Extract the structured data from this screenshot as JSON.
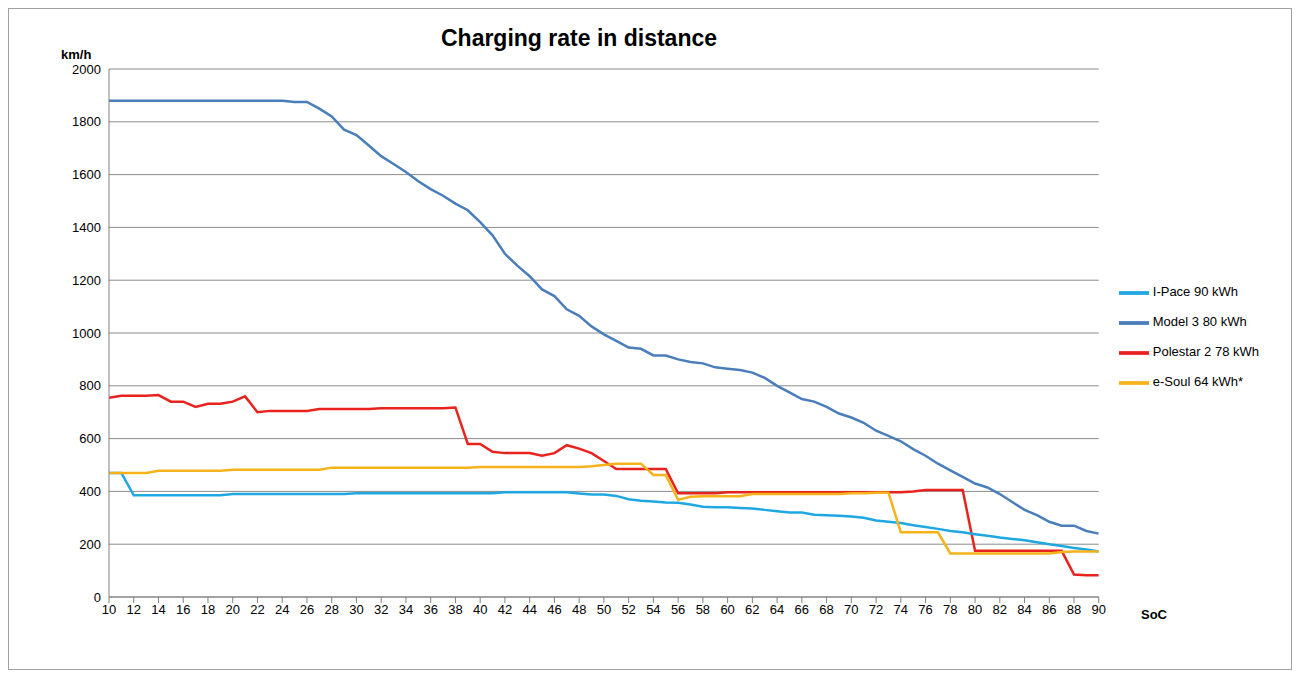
{
  "chart_data": {
    "type": "line",
    "title": "Charging rate in distance",
    "x_label": "SoC",
    "y_label": "km/h",
    "x": [
      10,
      11,
      12,
      13,
      14,
      15,
      16,
      17,
      18,
      19,
      20,
      21,
      22,
      23,
      24,
      25,
      26,
      27,
      28,
      29,
      30,
      31,
      32,
      33,
      34,
      35,
      36,
      37,
      38,
      39,
      40,
      41,
      42,
      43,
      44,
      45,
      46,
      47,
      48,
      49,
      50,
      51,
      52,
      53,
      54,
      55,
      56,
      57,
      58,
      59,
      60,
      61,
      62,
      63,
      64,
      65,
      66,
      67,
      68,
      69,
      70,
      71,
      72,
      73,
      74,
      75,
      76,
      77,
      78,
      79,
      80,
      81,
      82,
      83,
      84,
      85,
      86,
      87,
      88,
      89,
      90
    ],
    "series": [
      {
        "name": "Model 3 80 kWh",
        "color": "#4a7ebb",
        "values": [
          1880,
          1880,
          1880,
          1880,
          1880,
          1880,
          1880,
          1880,
          1880,
          1880,
          1880,
          1880,
          1880,
          1880,
          1880,
          1875,
          1875,
          1850,
          1820,
          1770,
          1750,
          1710,
          1670,
          1640,
          1610,
          1575,
          1545,
          1520,
          1490,
          1465,
          1420,
          1370,
          1300,
          1255,
          1215,
          1165,
          1140,
          1090,
          1065,
          1025,
          995,
          970,
          945,
          940,
          915,
          915,
          900,
          890,
          885,
          870,
          865,
          860,
          850,
          830,
          800,
          775,
          750,
          740,
          720,
          695,
          680,
          660,
          630,
          610,
          590,
          560,
          535,
          505,
          480,
          455,
          430,
          415,
          390,
          360,
          330,
          310,
          285,
          270,
          270,
          250,
          240
        ]
      },
      {
        "name": "Polestar 2 78 kWh",
        "color": "#e8231e",
        "values": [
          755,
          762,
          762,
          762,
          765,
          740,
          740,
          720,
          732,
          732,
          740,
          760,
          700,
          705,
          705,
          705,
          705,
          712,
          712,
          712,
          712,
          712,
          715,
          715,
          715,
          715,
          715,
          715,
          718,
          580,
          580,
          550,
          545,
          545,
          545,
          535,
          545,
          575,
          562,
          545,
          515,
          485,
          485,
          485,
          485,
          485,
          393,
          393,
          393,
          393,
          397,
          397,
          397,
          397,
          397,
          397,
          397,
          397,
          397,
          397,
          397,
          397,
          397,
          397,
          397,
          400,
          405,
          405,
          405,
          405,
          175,
          175,
          175,
          175,
          175,
          175,
          175,
          175,
          85,
          82,
          82
        ]
      },
      {
        "name": "I-Pace 90 kWh",
        "color": "#1fa7e1",
        "values": [
          470,
          470,
          385,
          385,
          385,
          385,
          385,
          385,
          385,
          385,
          390,
          390,
          390,
          390,
          390,
          390,
          390,
          390,
          390,
          390,
          393,
          393,
          393,
          393,
          393,
          393,
          393,
          393,
          393,
          393,
          393,
          393,
          397,
          397,
          397,
          397,
          397,
          397,
          392,
          388,
          388,
          383,
          370,
          365,
          362,
          358,
          357,
          350,
          342,
          340,
          340,
          337,
          335,
          330,
          325,
          320,
          320,
          312,
          310,
          308,
          305,
          300,
          290,
          285,
          280,
          272,
          265,
          258,
          250,
          245,
          238,
          232,
          225,
          220,
          215,
          207,
          200,
          193,
          186,
          180,
          172
        ]
      },
      {
        "name": "e-Soul 64 kWh*",
        "color": "#f5b21b",
        "values": [
          470,
          470,
          470,
          470,
          478,
          478,
          478,
          478,
          478,
          478,
          482,
          482,
          482,
          482,
          482,
          482,
          482,
          482,
          490,
          490,
          490,
          490,
          490,
          490,
          490,
          490,
          490,
          490,
          490,
          490,
          492,
          492,
          492,
          492,
          492,
          492,
          492,
          492,
          492,
          495,
          500,
          505,
          505,
          505,
          462,
          462,
          368,
          380,
          382,
          382,
          382,
          382,
          390,
          390,
          390,
          390,
          390,
          390,
          390,
          390,
          393,
          393,
          395,
          395,
          245,
          245,
          245,
          245,
          165,
          165,
          165,
          165,
          165,
          165,
          165,
          165,
          165,
          170,
          172,
          172,
          172
        ]
      }
    ],
    "xlim": [
      10,
      90
    ],
    "xticks": [
      10,
      12,
      14,
      16,
      18,
      20,
      22,
      24,
      26,
      28,
      30,
      32,
      34,
      36,
      38,
      40,
      42,
      44,
      46,
      48,
      50,
      52,
      54,
      56,
      58,
      60,
      62,
      64,
      66,
      68,
      70,
      72,
      74,
      76,
      78,
      80,
      82,
      84,
      86,
      88,
      90
    ],
    "ylim": [
      0,
      2000
    ],
    "yticks": [
      0,
      200,
      400,
      600,
      800,
      1000,
      1200,
      1400,
      1600,
      1800,
      2000
    ],
    "grid": true,
    "legend": "right"
  }
}
